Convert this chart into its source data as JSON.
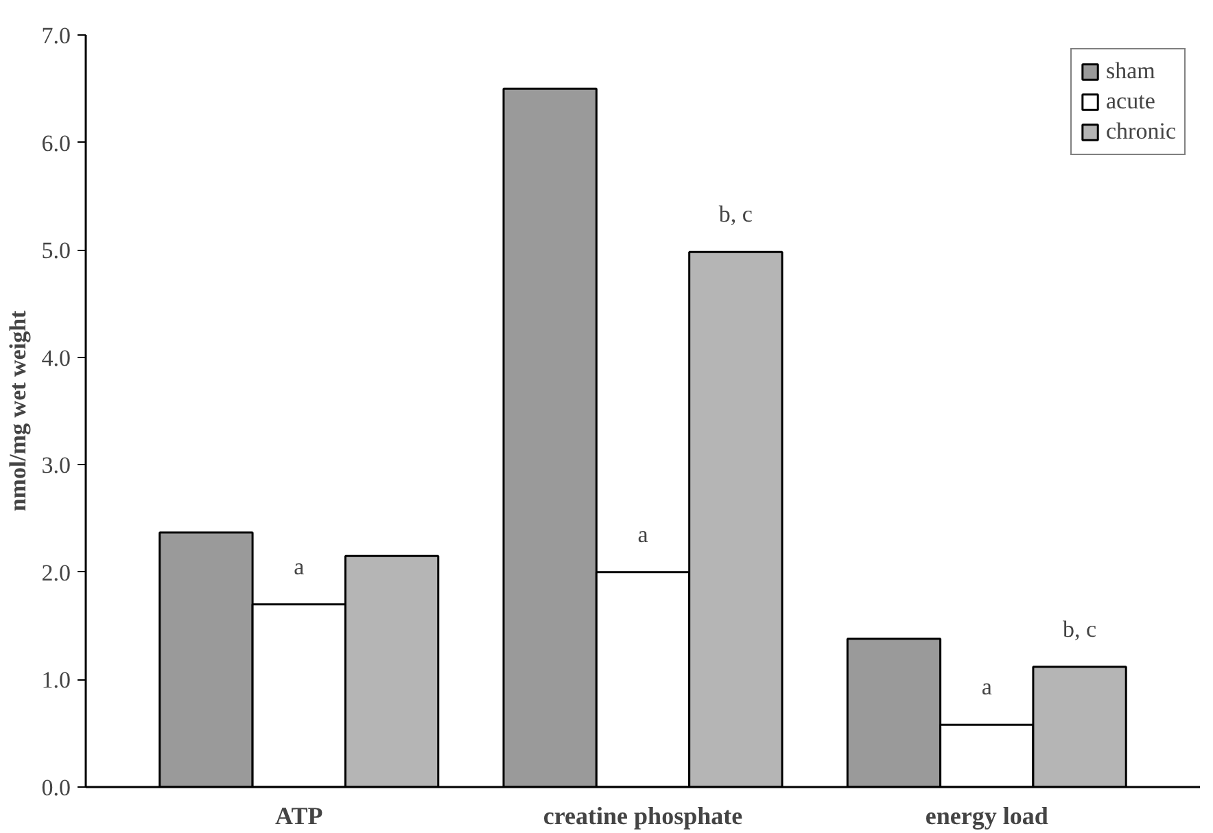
{
  "chart_data": {
    "type": "bar",
    "ylabel": "nmol/mg wet weight",
    "categories": [
      "ATP",
      "creatine phosphate",
      "energy load"
    ],
    "series": [
      {
        "name": "sham",
        "color": "#9a9a9a",
        "values": [
          2.37,
          6.5,
          1.38
        ]
      },
      {
        "name": "acute",
        "color": "#ffffff",
        "values": [
          1.7,
          2.0,
          0.58
        ]
      },
      {
        "name": "chronic",
        "color": "#b5b5b5",
        "values": [
          2.15,
          4.98,
          1.12
        ]
      }
    ],
    "ylim": [
      0,
      7.0
    ],
    "yticks": [
      {
        "value": 0,
        "label": "0.0"
      },
      {
        "value": 1,
        "label": "1.0"
      },
      {
        "value": 2,
        "label": "2.0"
      },
      {
        "value": 3,
        "label": "3.0"
      },
      {
        "value": 4,
        "label": "4.0"
      },
      {
        "value": 5,
        "label": "5.0"
      },
      {
        "value": 6,
        "label": "6.0"
      },
      {
        "value": 7,
        "label": "7.0"
      }
    ],
    "annotations": [
      {
        "text": "a",
        "x": "ATP",
        "y": 1.7
      },
      {
        "text": "a",
        "x": "creatine phosphate",
        "y": 2.0
      },
      "b, c",
      {
        "text": "a",
        "x": "energy load",
        "y": 0.58
      },
      "b, c"
    ],
    "grid": false,
    "legend": "top right"
  }
}
